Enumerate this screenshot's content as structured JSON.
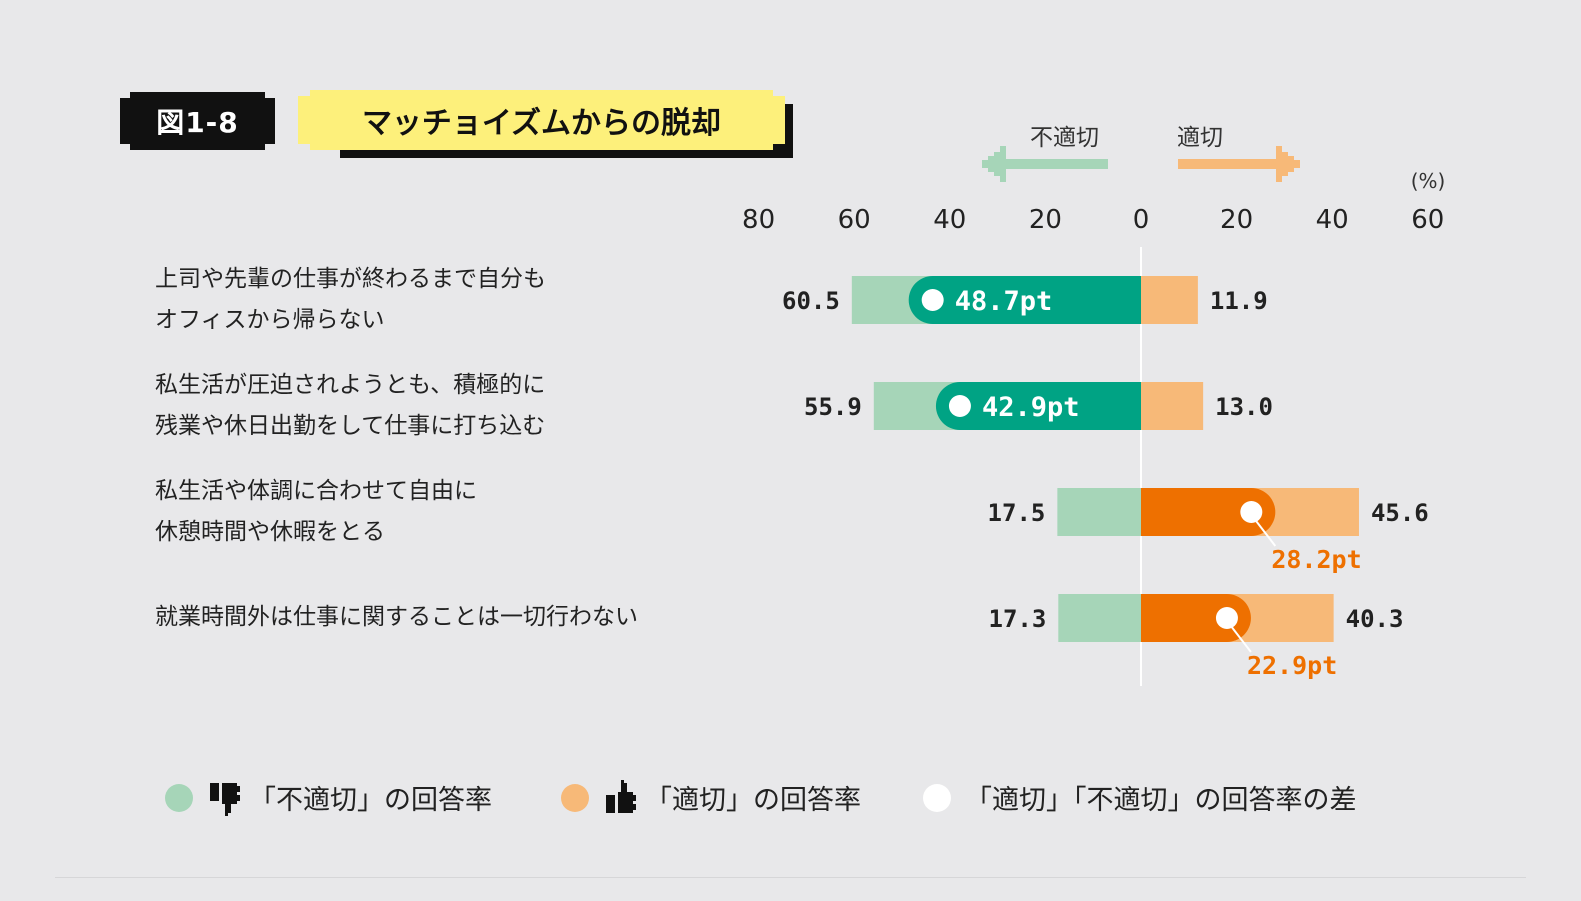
{
  "badge": "図1-8",
  "title": "マッチョイズムからの脱却",
  "direction": {
    "left": "不適切",
    "right": "適切"
  },
  "unit": "(%)",
  "chart_data": {
    "type": "bar",
    "orientation": "horizontal-diverging",
    "axis_ticks": [
      "80",
      "60",
      "40",
      "20",
      "0",
      "20",
      "40",
      "60"
    ],
    "xlim": [
      -80,
      60
    ],
    "categories": [
      "上司や先輩の仕事が終わるまで自分も\nオフィスから帰らない",
      "私生活が圧迫されようとも、積極的に\n残業や休日出勤をして仕事に打ち込む",
      "私生活や体調に合わせて自由に\n休憩時間や休暇をとる",
      "就業時間外は仕事に関することは一切行わない"
    ],
    "series": [
      {
        "name": "「不適切」の回答率",
        "values": [
          60.5,
          55.9,
          17.5,
          17.3
        ],
        "labels": [
          "60.5",
          "55.9",
          "17.5",
          "17.3"
        ],
        "color": "#a6d5b8"
      },
      {
        "name": "「適切」の回答率",
        "values": [
          11.9,
          13.0,
          45.6,
          40.3
        ],
        "labels": [
          "11.9",
          "13.0",
          "45.6",
          "40.3"
        ],
        "color": "#f7b978"
      },
      {
        "name": "「適切」「不適切」の回答率の差",
        "values": [
          -48.6,
          -42.9,
          28.1,
          23.0
        ],
        "labels": [
          "48.7pt",
          "42.9pt",
          "28.2pt",
          "22.9pt"
        ],
        "color": "#ffffff"
      }
    ],
    "diff_colors": {
      "negative": "#00a384",
      "positive": "#ee7000"
    }
  },
  "legend": [
    {
      "label": "「不適切」の回答率",
      "color": "#a6d5b8",
      "icon": "thumbs-down-icon"
    },
    {
      "label": "「適切」の回答率",
      "color": "#f7b978",
      "icon": "thumbs-up-icon"
    },
    {
      "label": "「適切」「不適切」の回答率の差",
      "color": "#ffffff",
      "icon": ""
    }
  ]
}
